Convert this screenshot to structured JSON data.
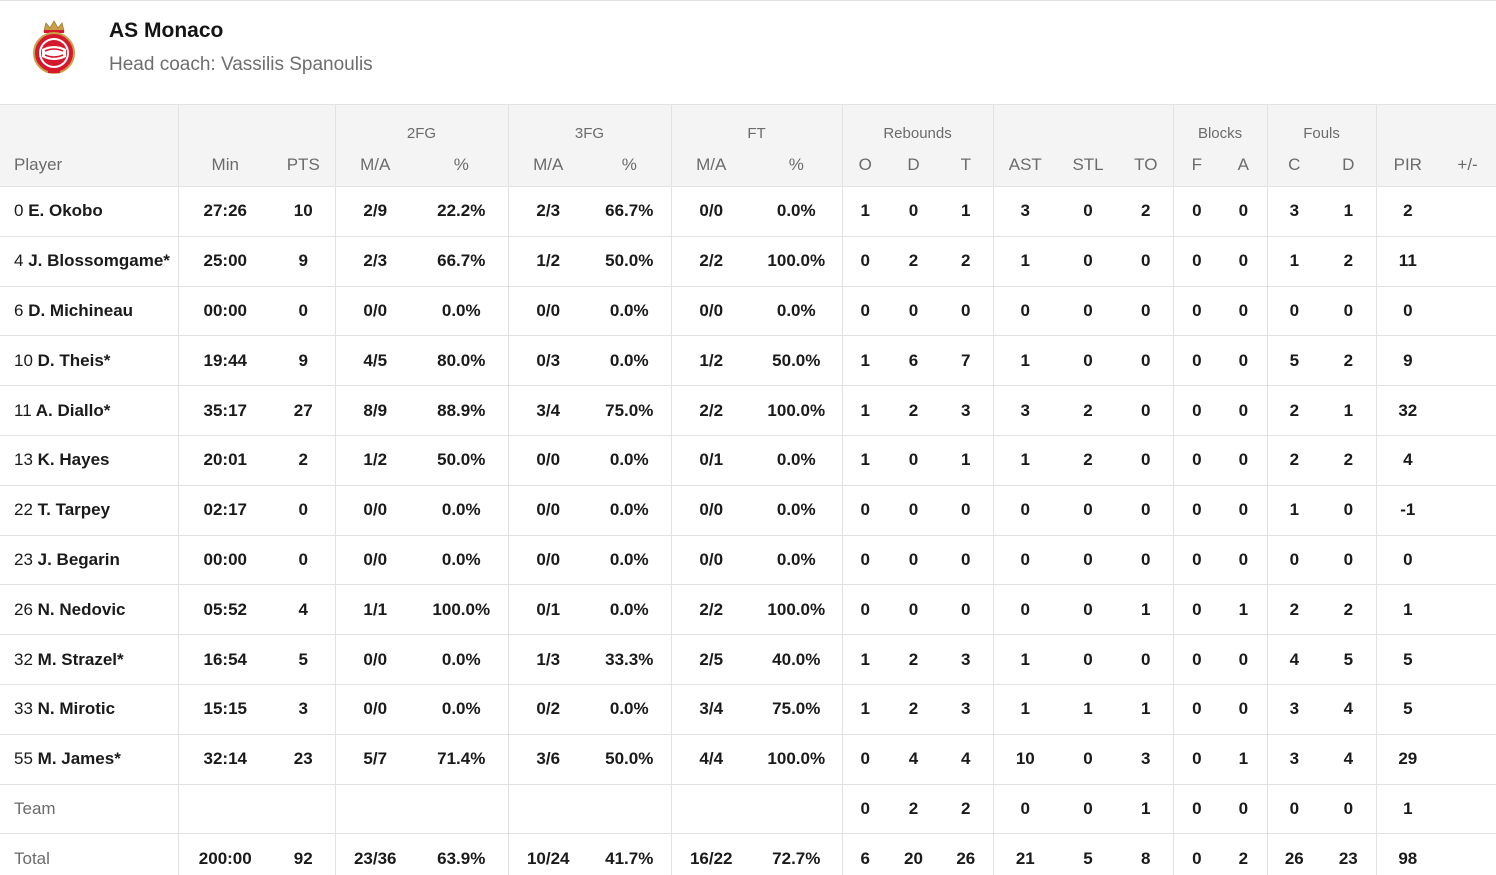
{
  "team": {
    "name": "AS Monaco",
    "coach": "Head coach: Vassilis Spanoulis",
    "logo_icon": "as-monaco-crest-icon",
    "colors": {
      "red": "#d6182c",
      "gold": "#c9a14a",
      "white": "#ffffff"
    }
  },
  "groups": {
    "fg2": "2FG",
    "fg3": "3FG",
    "ft": "FT",
    "rebounds": "Rebounds",
    "blocks": "Blocks",
    "fouls": "Fouls"
  },
  "columns": {
    "player": "Player",
    "min": "Min",
    "pts": "PTS",
    "fg2_ma": "M/A",
    "fg2_pct": "%",
    "fg3_ma": "M/A",
    "fg3_pct": "%",
    "ft_ma": "M/A",
    "ft_pct": "%",
    "reb_o": "O",
    "reb_d": "D",
    "reb_t": "T",
    "ast": "AST",
    "stl": "STL",
    "to": "TO",
    "blk_f": "F",
    "blk_a": "A",
    "foul_c": "C",
    "foul_d": "D",
    "pir": "PIR",
    "plusminus": "+/-"
  },
  "rows": [
    {
      "num": "0",
      "name": "E. Okobo",
      "min": "27:26",
      "pts": "10",
      "fg2_ma": "2/9",
      "fg2_pct": "22.2%",
      "fg3_ma": "2/3",
      "fg3_pct": "66.7%",
      "ft_ma": "0/0",
      "ft_pct": "0.0%",
      "reb_o": "1",
      "reb_d": "0",
      "reb_t": "1",
      "ast": "3",
      "stl": "0",
      "to": "2",
      "blk_f": "0",
      "blk_a": "0",
      "foul_c": "3",
      "foul_d": "1",
      "pir": "2",
      "plusminus": ""
    },
    {
      "num": "4",
      "name": "J. Blossomgame*",
      "min": "25:00",
      "pts": "9",
      "fg2_ma": "2/3",
      "fg2_pct": "66.7%",
      "fg3_ma": "1/2",
      "fg3_pct": "50.0%",
      "ft_ma": "2/2",
      "ft_pct": "100.0%",
      "reb_o": "0",
      "reb_d": "2",
      "reb_t": "2",
      "ast": "1",
      "stl": "0",
      "to": "0",
      "blk_f": "0",
      "blk_a": "0",
      "foul_c": "1",
      "foul_d": "2",
      "pir": "11",
      "plusminus": ""
    },
    {
      "num": "6",
      "name": "D. Michineau",
      "min": "00:00",
      "pts": "0",
      "fg2_ma": "0/0",
      "fg2_pct": "0.0%",
      "fg3_ma": "0/0",
      "fg3_pct": "0.0%",
      "ft_ma": "0/0",
      "ft_pct": "0.0%",
      "reb_o": "0",
      "reb_d": "0",
      "reb_t": "0",
      "ast": "0",
      "stl": "0",
      "to": "0",
      "blk_f": "0",
      "blk_a": "0",
      "foul_c": "0",
      "foul_d": "0",
      "pir": "0",
      "plusminus": ""
    },
    {
      "num": "10",
      "name": "D. Theis*",
      "min": "19:44",
      "pts": "9",
      "fg2_ma": "4/5",
      "fg2_pct": "80.0%",
      "fg3_ma": "0/3",
      "fg3_pct": "0.0%",
      "ft_ma": "1/2",
      "ft_pct": "50.0%",
      "reb_o": "1",
      "reb_d": "6",
      "reb_t": "7",
      "ast": "1",
      "stl": "0",
      "to": "0",
      "blk_f": "0",
      "blk_a": "0",
      "foul_c": "5",
      "foul_d": "2",
      "pir": "9",
      "plusminus": ""
    },
    {
      "num": "11",
      "name": "A. Diallo*",
      "min": "35:17",
      "pts": "27",
      "fg2_ma": "8/9",
      "fg2_pct": "88.9%",
      "fg3_ma": "3/4",
      "fg3_pct": "75.0%",
      "ft_ma": "2/2",
      "ft_pct": "100.0%",
      "reb_o": "1",
      "reb_d": "2",
      "reb_t": "3",
      "ast": "3",
      "stl": "2",
      "to": "0",
      "blk_f": "0",
      "blk_a": "0",
      "foul_c": "2",
      "foul_d": "1",
      "pir": "32",
      "plusminus": ""
    },
    {
      "num": "13",
      "name": "K. Hayes",
      "min": "20:01",
      "pts": "2",
      "fg2_ma": "1/2",
      "fg2_pct": "50.0%",
      "fg3_ma": "0/0",
      "fg3_pct": "0.0%",
      "ft_ma": "0/1",
      "ft_pct": "0.0%",
      "reb_o": "1",
      "reb_d": "0",
      "reb_t": "1",
      "ast": "1",
      "stl": "2",
      "to": "0",
      "blk_f": "0",
      "blk_a": "0",
      "foul_c": "2",
      "foul_d": "2",
      "pir": "4",
      "plusminus": ""
    },
    {
      "num": "22",
      "name": "T. Tarpey",
      "min": "02:17",
      "pts": "0",
      "fg2_ma": "0/0",
      "fg2_pct": "0.0%",
      "fg3_ma": "0/0",
      "fg3_pct": "0.0%",
      "ft_ma": "0/0",
      "ft_pct": "0.0%",
      "reb_o": "0",
      "reb_d": "0",
      "reb_t": "0",
      "ast": "0",
      "stl": "0",
      "to": "0",
      "blk_f": "0",
      "blk_a": "0",
      "foul_c": "1",
      "foul_d": "0",
      "pir": "-1",
      "plusminus": ""
    },
    {
      "num": "23",
      "name": "J. Begarin",
      "min": "00:00",
      "pts": "0",
      "fg2_ma": "0/0",
      "fg2_pct": "0.0%",
      "fg3_ma": "0/0",
      "fg3_pct": "0.0%",
      "ft_ma": "0/0",
      "ft_pct": "0.0%",
      "reb_o": "0",
      "reb_d": "0",
      "reb_t": "0",
      "ast": "0",
      "stl": "0",
      "to": "0",
      "blk_f": "0",
      "blk_a": "0",
      "foul_c": "0",
      "foul_d": "0",
      "pir": "0",
      "plusminus": ""
    },
    {
      "num": "26",
      "name": "N. Nedovic",
      "min": "05:52",
      "pts": "4",
      "fg2_ma": "1/1",
      "fg2_pct": "100.0%",
      "fg3_ma": "0/1",
      "fg3_pct": "0.0%",
      "ft_ma": "2/2",
      "ft_pct": "100.0%",
      "reb_o": "0",
      "reb_d": "0",
      "reb_t": "0",
      "ast": "0",
      "stl": "0",
      "to": "1",
      "blk_f": "0",
      "blk_a": "1",
      "foul_c": "2",
      "foul_d": "2",
      "pir": "1",
      "plusminus": ""
    },
    {
      "num": "32",
      "name": "M. Strazel*",
      "min": "16:54",
      "pts": "5",
      "fg2_ma": "0/0",
      "fg2_pct": "0.0%",
      "fg3_ma": "1/3",
      "fg3_pct": "33.3%",
      "ft_ma": "2/5",
      "ft_pct": "40.0%",
      "reb_o": "1",
      "reb_d": "2",
      "reb_t": "3",
      "ast": "1",
      "stl": "0",
      "to": "0",
      "blk_f": "0",
      "blk_a": "0",
      "foul_c": "4",
      "foul_d": "5",
      "pir": "5",
      "plusminus": ""
    },
    {
      "num": "33",
      "name": "N. Mirotic",
      "min": "15:15",
      "pts": "3",
      "fg2_ma": "0/0",
      "fg2_pct": "0.0%",
      "fg3_ma": "0/2",
      "fg3_pct": "0.0%",
      "ft_ma": "3/4",
      "ft_pct": "75.0%",
      "reb_o": "1",
      "reb_d": "2",
      "reb_t": "3",
      "ast": "1",
      "stl": "1",
      "to": "1",
      "blk_f": "0",
      "blk_a": "0",
      "foul_c": "3",
      "foul_d": "4",
      "pir": "5",
      "plusminus": ""
    },
    {
      "num": "55",
      "name": "M. James*",
      "min": "32:14",
      "pts": "23",
      "fg2_ma": "5/7",
      "fg2_pct": "71.4%",
      "fg3_ma": "3/6",
      "fg3_pct": "50.0%",
      "ft_ma": "4/4",
      "ft_pct": "100.0%",
      "reb_o": "0",
      "reb_d": "4",
      "reb_t": "4",
      "ast": "10",
      "stl": "0",
      "to": "3",
      "blk_f": "0",
      "blk_a": "1",
      "foul_c": "3",
      "foul_d": "4",
      "pir": "29",
      "plusminus": ""
    }
  ],
  "team_row": {
    "label": "Team",
    "min": "",
    "pts": "",
    "fg2_ma": "",
    "fg2_pct": "",
    "fg3_ma": "",
    "fg3_pct": "",
    "ft_ma": "",
    "ft_pct": "",
    "reb_o": "0",
    "reb_d": "2",
    "reb_t": "2",
    "ast": "0",
    "stl": "0",
    "to": "1",
    "blk_f": "0",
    "blk_a": "0",
    "foul_c": "0",
    "foul_d": "0",
    "pir": "1",
    "plusminus": ""
  },
  "total_row": {
    "label": "Total",
    "min": "200:00",
    "pts": "92",
    "fg2_ma": "23/36",
    "fg2_pct": "63.9%",
    "fg3_ma": "10/24",
    "fg3_pct": "41.7%",
    "ft_ma": "16/22",
    "ft_pct": "72.7%",
    "reb_o": "6",
    "reb_d": "20",
    "reb_t": "26",
    "ast": "21",
    "stl": "5",
    "to": "8",
    "blk_f": "0",
    "blk_a": "2",
    "foul_c": "26",
    "foul_d": "23",
    "pir": "98",
    "plusminus": ""
  }
}
